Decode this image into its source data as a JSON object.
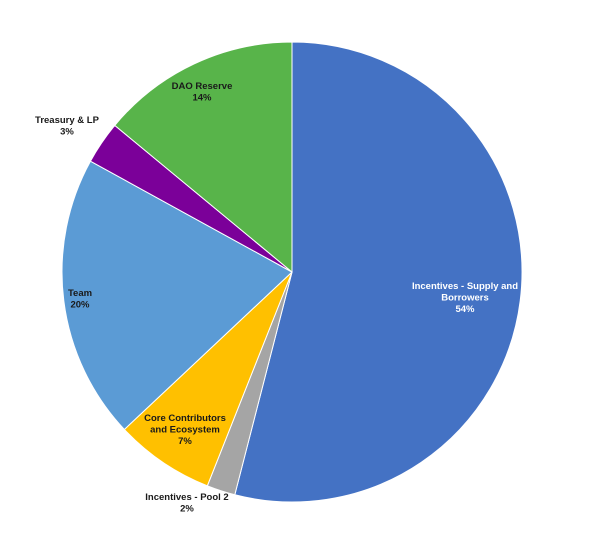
{
  "chart_data": {
    "type": "pie",
    "title": "",
    "start_angle_deg": 0,
    "direction": "clockwise",
    "slices": [
      {
        "name": "Incentives - Supply and Borrowers",
        "label_lines": [
          "Incentives - Supply and",
          "Borrowers"
        ],
        "value": 54,
        "pct_label": "54%",
        "color": "#4472C4",
        "label_color": "#ffffff",
        "label_inside": true
      },
      {
        "name": "Incentives - Pool 2",
        "label_lines": [
          "Incentives - Pool 2"
        ],
        "value": 2,
        "pct_label": "2%",
        "color": "#A5A5A5",
        "label_color": "#1a1a1a",
        "label_inside": false
      },
      {
        "name": "Core Contributors and Ecosystem",
        "label_lines": [
          "Core Contributors",
          "and Ecosystem"
        ],
        "value": 7,
        "pct_label": "7%",
        "color": "#FFC000",
        "label_color": "#1a1a1a",
        "label_inside": true
      },
      {
        "name": "Team",
        "label_lines": [
          "Team"
        ],
        "value": 20,
        "pct_label": "20%",
        "color": "#5B9BD5",
        "label_color": "#1a1a1a",
        "label_inside": true
      },
      {
        "name": "Treasury & LP",
        "label_lines": [
          "Treasury & LP"
        ],
        "value": 3,
        "pct_label": "3%",
        "color": "#7B0099",
        "label_color": "#1a1a1a",
        "label_inside": false
      },
      {
        "name": "DAO Reserve",
        "label_lines": [
          "DAO Reserve"
        ],
        "value": 14,
        "pct_label": "14%",
        "color": "#58B44A",
        "label_color": "#1a1a1a",
        "label_inside": true
      }
    ]
  }
}
